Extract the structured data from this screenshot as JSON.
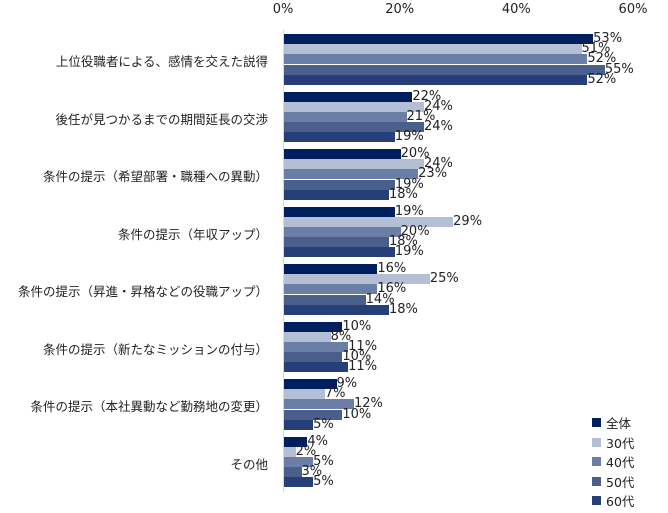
{
  "chart_data": {
    "type": "bar",
    "orientation": "horizontal",
    "title": "",
    "xlabel": "",
    "ylabel": "",
    "xlim": [
      0,
      60
    ],
    "x_ticks": [
      "0%",
      "20%",
      "40%",
      "60%"
    ],
    "grid": false,
    "legend_position": "bottom-right",
    "categories": [
      "上位役職者による、感情を交えた説得",
      "後任が見つかるまでの期間延長の交渉",
      "条件の提示（希望部署・職種への異動）",
      "条件の提示（年収アップ）",
      "条件の提示（昇進・昇格などの役職アップ）",
      "条件の提示（新たなミッションの付与）",
      "条件の提示（本社異動など勤務地の変更）",
      "その他"
    ],
    "series": [
      {
        "name": "全体",
        "color": "#001f5f",
        "values": [
          53,
          22,
          20,
          19,
          16,
          10,
          9,
          4
        ]
      },
      {
        "name": "30代",
        "color": "#b4bfd6",
        "values": [
          51,
          24,
          24,
          29,
          25,
          8,
          7,
          2
        ]
      },
      {
        "name": "40代",
        "color": "#6b7fa6",
        "values": [
          52,
          21,
          23,
          20,
          16,
          11,
          12,
          5
        ]
      },
      {
        "name": "50代",
        "color": "#4a5f8c",
        "values": [
          55,
          24,
          19,
          18,
          14,
          10,
          10,
          3
        ]
      },
      {
        "name": "60代",
        "color": "#263f78",
        "values": [
          52,
          19,
          18,
          19,
          18,
          11,
          5,
          5
        ]
      }
    ],
    "value_suffix": "%"
  }
}
